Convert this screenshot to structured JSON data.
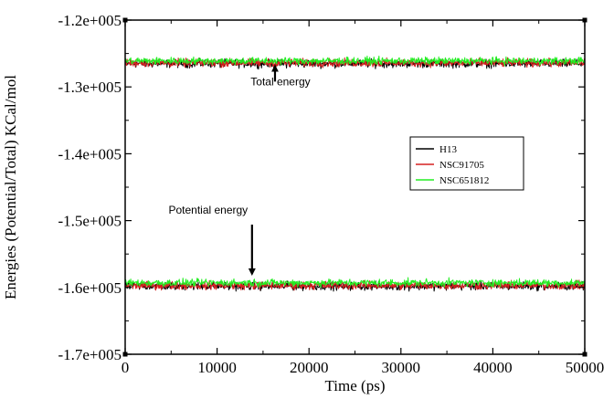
{
  "chart_data": {
    "type": "line",
    "title": "",
    "xlabel": "Time (ps)",
    "ylabel": "Energies (Potential/Total) KCal/mol",
    "xlim": [
      0,
      50000
    ],
    "ylim": [
      -170000,
      -120000
    ],
    "x_ticks": [
      0,
      10000,
      20000,
      30000,
      40000,
      50000
    ],
    "x_tick_labels": [
      "0",
      "10000",
      "20000",
      "30000",
      "40000",
      "50000"
    ],
    "y_ticks": [
      -170000,
      -160000,
      -150000,
      -140000,
      -130000,
      -120000
    ],
    "y_tick_labels": [
      "-1.7e+005",
      "-1.6e+005",
      "-1.5e+005",
      "-1.4e+005",
      "-1.3e+005",
      "-1.2e+005"
    ],
    "grid": false,
    "legend_position": "right",
    "series": [
      {
        "name": "H13",
        "color": "#000000",
        "x_range": [
          0,
          50000
        ],
        "band_mean": {
          "total_energy": -126500,
          "potential_energy": -159800
        },
        "band_spread": 900
      },
      {
        "name": "NSC91705",
        "color": "#d62020",
        "x_range": [
          0,
          50000
        ],
        "band_mean": {
          "total_energy": -126400,
          "potential_energy": -159700
        },
        "band_spread": 900
      },
      {
        "name": "NSC651812",
        "color": "#22ee22",
        "x_range": [
          0,
          50000
        ],
        "band_mean": {
          "total_energy": -126100,
          "potential_energy": -159300
        },
        "band_spread": 800
      }
    ],
    "annotations": [
      {
        "text": "Total energy",
        "arrow_x": 16300,
        "arrow_y_from": -129200,
        "arrow_y_to": -127200
      },
      {
        "text": "Potential energy",
        "arrow_x": 13800,
        "arrow_y_from": -150600,
        "arrow_y_to": -157700
      }
    ]
  }
}
